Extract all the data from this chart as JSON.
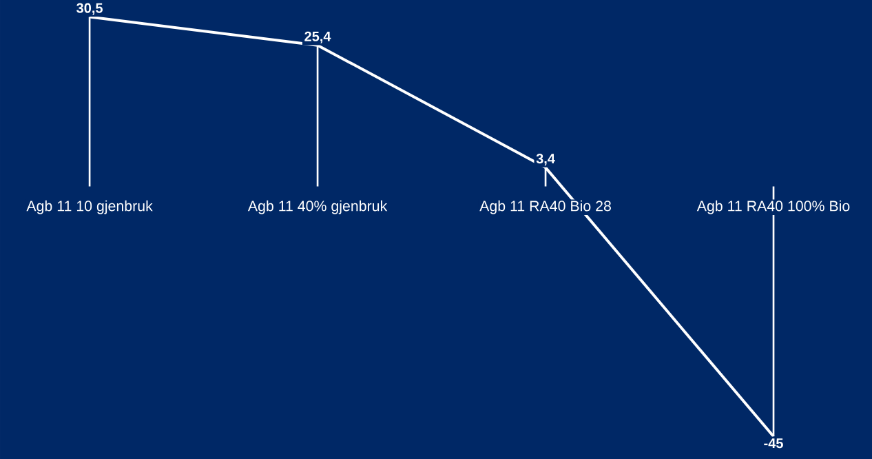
{
  "chart_data": {
    "type": "line",
    "categories": [
      "Agb 11 10 gjenbruk",
      "Agb 11 40% gjenbruk",
      "Agb 11 RA40 Bio 28",
      "Agb 11 RA40 100% Bio"
    ],
    "series": [
      {
        "type": "bar",
        "color": "#ffffff",
        "values": [
          30.5,
          25.4,
          3.4,
          -45
        ]
      },
      {
        "color": "#ffffff",
        "values": [
          30.5,
          25.4,
          3.4,
          -45
        ],
        "value_labels": [
          "30,5",
          "25,4",
          "3,4",
          "-45"
        ]
      }
    ],
    "marker": "none",
    "line_style": "solid"
  }
}
